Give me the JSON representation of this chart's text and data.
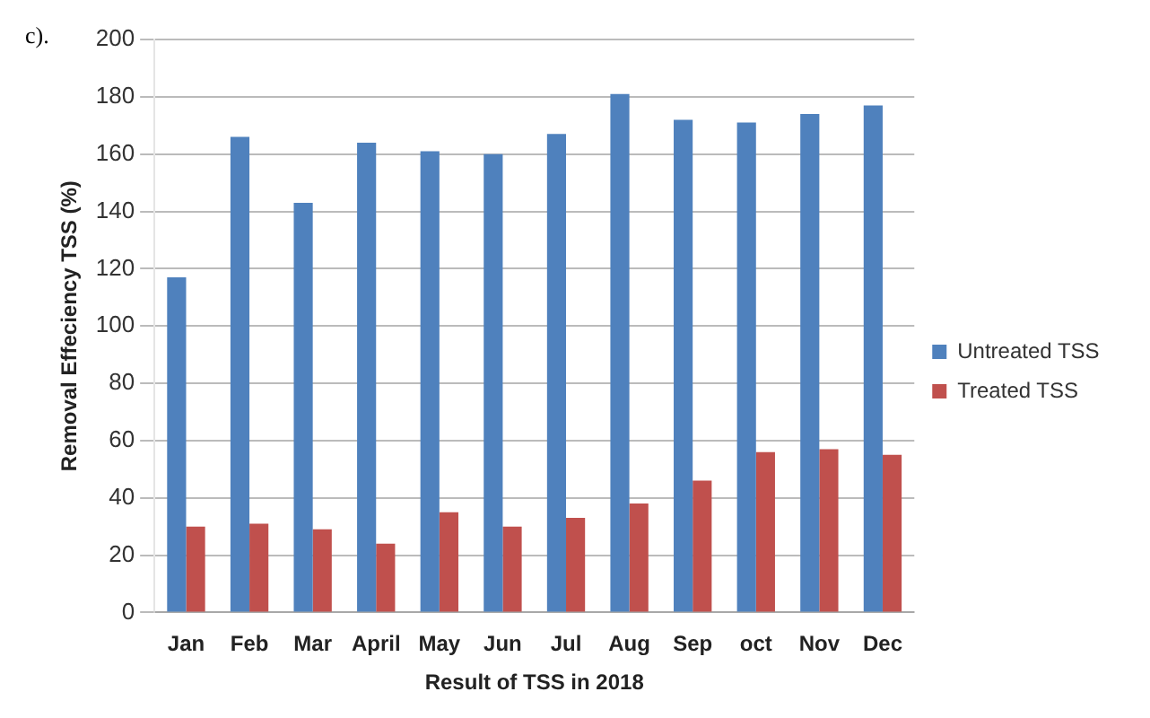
{
  "chart_data": {
    "type": "bar",
    "xlabel": "Result of TSS in 2018",
    "ylabel": "Removal Effeciency TSS (%)",
    "annotations": [
      "c)."
    ],
    "categories": [
      "Jan",
      "Feb",
      "Mar",
      "April",
      "May",
      "Jun",
      "Jul",
      "Aug",
      "Sep",
      "oct",
      "Nov",
      "Dec"
    ],
    "series": [
      {
        "name": "Untreated TSS",
        "color": "#4f81bd",
        "values": [
          117,
          166,
          143,
          164,
          161,
          160,
          167,
          181,
          172,
          171,
          174,
          177
        ]
      },
      {
        "name": "Treated TSS",
        "color": "#c0504d",
        "values": [
          30,
          31,
          29,
          24,
          35,
          30,
          33,
          38,
          46,
          56,
          57,
          55
        ]
      }
    ],
    "ylim": [
      0,
      200
    ],
    "yticks": [
      0,
      20,
      40,
      60,
      80,
      100,
      120,
      140,
      160,
      180,
      200
    ],
    "grid": "y",
    "legend": "right"
  }
}
